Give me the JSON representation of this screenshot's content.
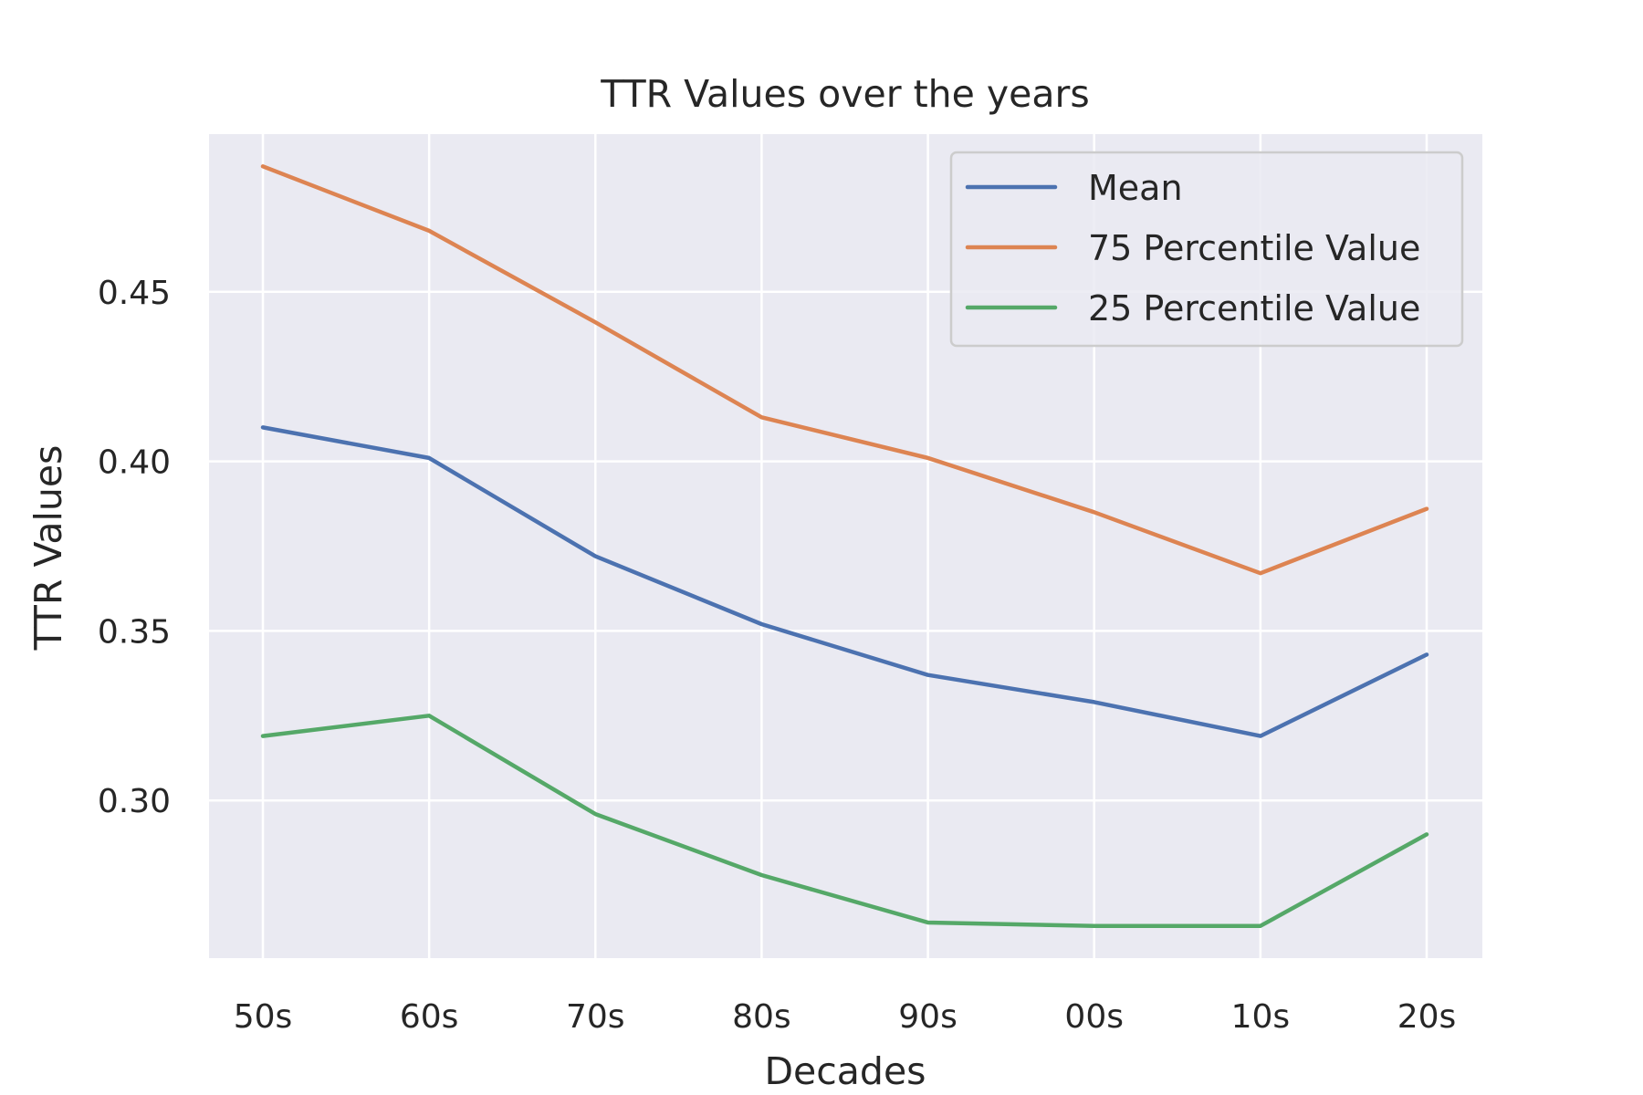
{
  "chart_data": {
    "type": "line",
    "title": "TTR Values over the years",
    "xlabel": "Decades",
    "ylabel": "TTR Values",
    "categories": [
      "50s",
      "60s",
      "70s",
      "80s",
      "90s",
      "00s",
      "10s",
      "20s"
    ],
    "ylim": [
      0.2535,
      0.4965
    ],
    "yticks": [
      0.3,
      0.35,
      0.4,
      0.45
    ],
    "ytick_labels": [
      "0.30",
      "0.35",
      "0.40",
      "0.45"
    ],
    "grid": true,
    "legend_position": "top-right",
    "series": [
      {
        "name": "Mean",
        "color": "#4c72b0",
        "values": [
          0.41,
          0.401,
          0.372,
          0.352,
          0.337,
          0.329,
          0.319,
          0.343
        ]
      },
      {
        "name": "75 Percentile Value",
        "color": "#dd8452",
        "values": [
          0.487,
          0.468,
          0.441,
          0.413,
          0.401,
          0.385,
          0.367,
          0.386
        ]
      },
      {
        "name": "25 Percentile Value",
        "color": "#55a868",
        "values": [
          0.319,
          0.325,
          0.296,
          0.278,
          0.264,
          0.263,
          0.263,
          0.29
        ]
      }
    ]
  }
}
